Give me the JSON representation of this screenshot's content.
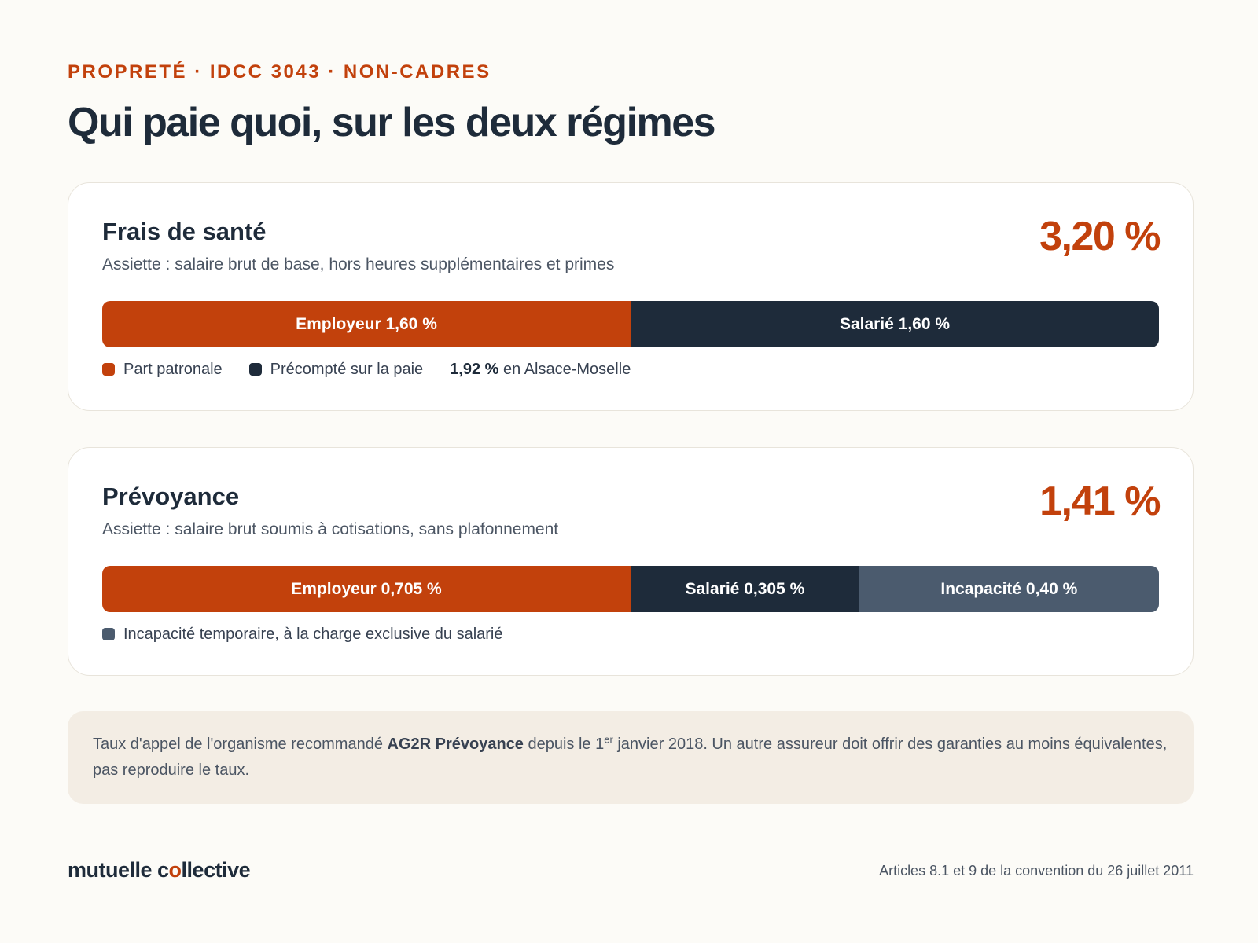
{
  "eyebrow": "PROPRETÉ · IDCC 3043 · NON-CADRES",
  "title": "Qui paie quoi, sur les deux régimes",
  "colors": {
    "employer": "#c2410c",
    "employee": "#1e2b3a",
    "incapacity": "#4b5b6e",
    "accent": "#c2410c"
  },
  "chart_data": [
    {
      "type": "bar",
      "orientation": "horizontal-stacked",
      "title": "Frais de santé",
      "subtitle": "Assiette : salaire brut de base, hors heures supplémentaires et primes",
      "total_label": "3,20 %",
      "total": 3.2,
      "series": [
        {
          "key": "employer",
          "label": "Employeur 1,60 %",
          "value": 1.6
        },
        {
          "key": "employee",
          "label": "Salarié 1,60 %",
          "value": 1.6
        }
      ],
      "legend": [
        {
          "key": "employer",
          "label": "Part patronale"
        },
        {
          "key": "employee",
          "label": "Précompté sur la paie"
        }
      ],
      "note_value": "1,92 %",
      "note_text": " en Alsace-Moselle"
    },
    {
      "type": "bar",
      "orientation": "horizontal-stacked",
      "title": "Prévoyance",
      "subtitle": "Assiette : salaire brut soumis à cotisations, sans plafonnement",
      "total_label": "1,41 %",
      "total": 1.41,
      "series": [
        {
          "key": "employer",
          "label": "Employeur 0,705 %",
          "value": 0.705
        },
        {
          "key": "employee",
          "label": "Salarié 0,305 %",
          "value": 0.305
        },
        {
          "key": "incapacity",
          "label": "Incapacité 0,40 %",
          "value": 0.4
        }
      ],
      "legend": [
        {
          "key": "incapacity",
          "label": "Incapacité temporaire, à la charge exclusive du salarié"
        }
      ]
    }
  ],
  "note": {
    "part1": "Taux d'appel de l'organisme recommandé ",
    "bold": "AG2R Prévoyance",
    "part2": " depuis le 1",
    "sup": "er",
    "part3": " janvier 2018. Un autre assureur doit offrir des garanties au moins équivalentes, pas reproduire le taux."
  },
  "footer": {
    "brand_before": "mutuelle c",
    "brand_o": "o",
    "brand_after": "llective",
    "source": "Articles 8.1 et 9 de la convention du 26 juillet 2011"
  }
}
